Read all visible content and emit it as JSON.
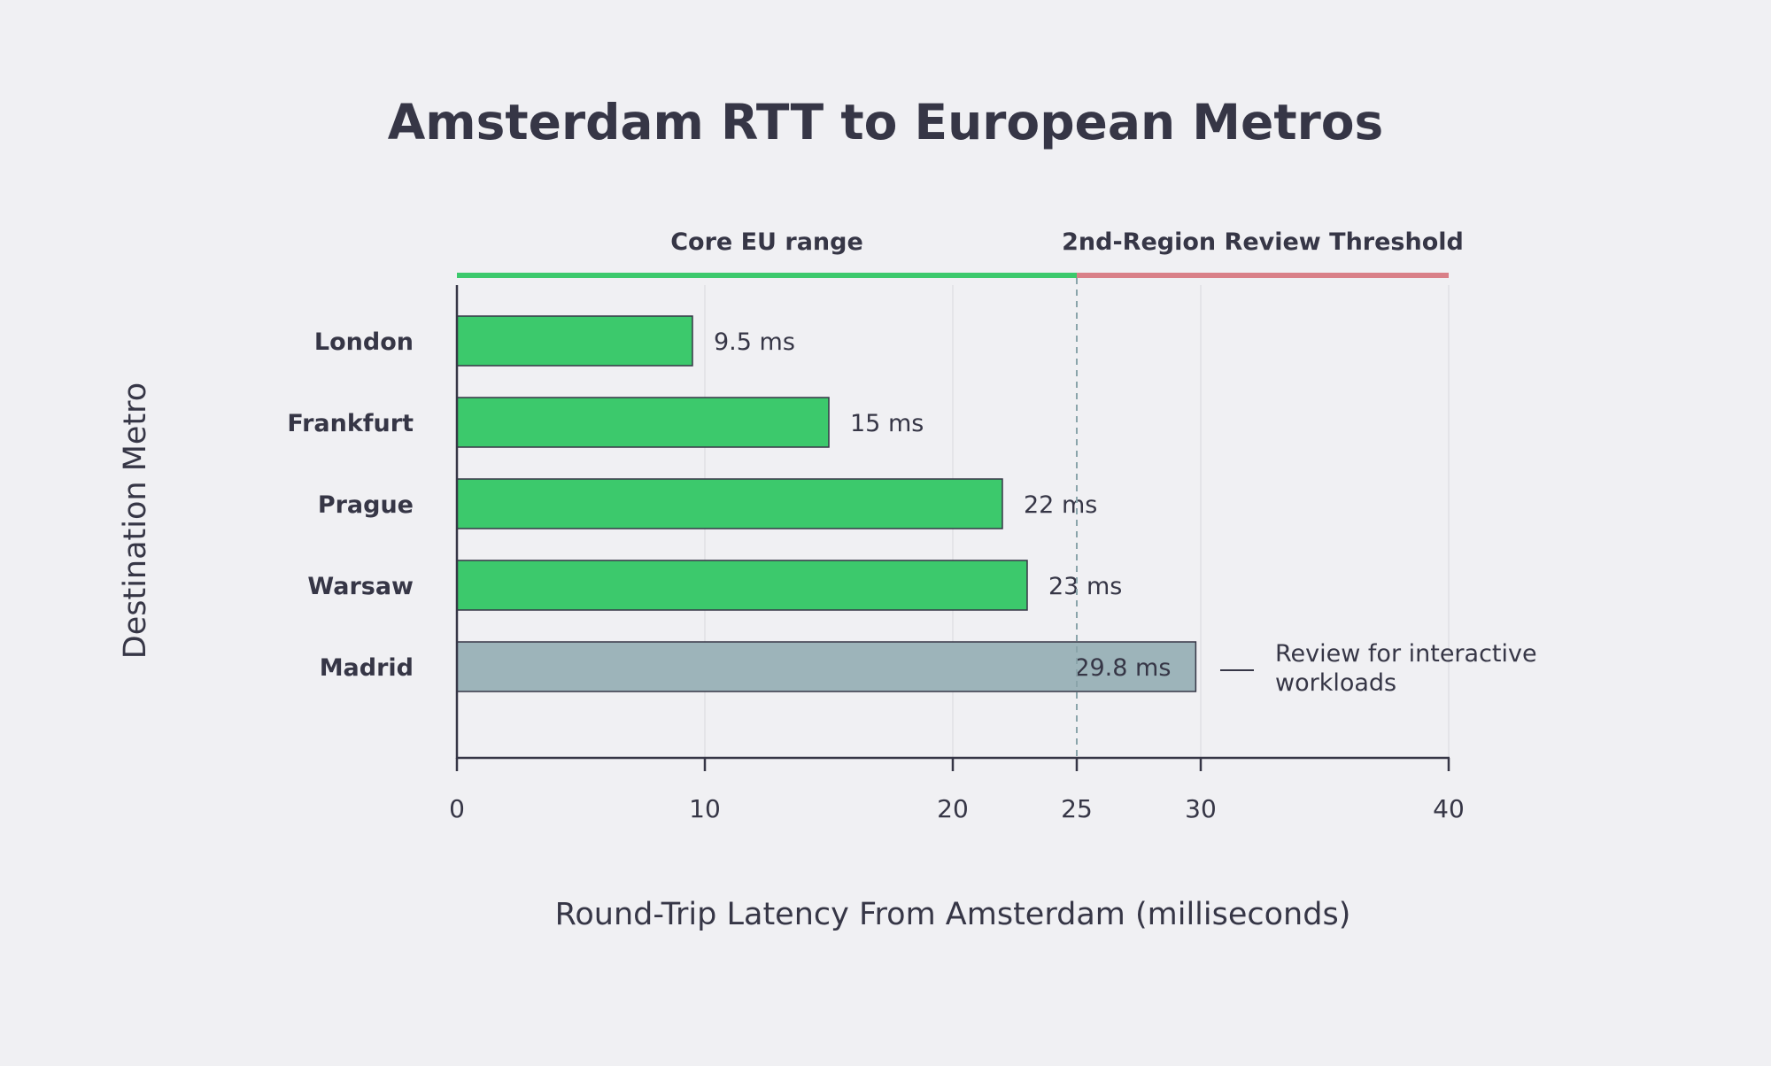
{
  "chart_data": {
    "type": "bar",
    "orientation": "horizontal",
    "title": "Amsterdam RTT to European Metros",
    "xlabel": "Round-Trip Latency From Amsterdam (milliseconds)",
    "ylabel": "Destination Metro",
    "categories": [
      "London",
      "Frankfurt",
      "Prague",
      "Warsaw",
      "Madrid"
    ],
    "values": [
      9.5,
      15,
      22,
      23,
      29.8
    ],
    "value_labels": [
      "9.5 ms",
      "15 ms",
      "22 ms",
      "23 ms",
      "29.8 ms"
    ],
    "bar_colors": [
      "#3cc96c",
      "#3cc96c",
      "#3cc96c",
      "#3cc96c",
      "#9db4ba"
    ],
    "xlim": [
      0,
      40
    ],
    "xticks": [
      0,
      10,
      20,
      25,
      30,
      40
    ],
    "grid": true,
    "threshold": {
      "value": 25,
      "style": "dashed",
      "color": "#8aa4aa"
    },
    "bands": [
      {
        "label": "Core EU range",
        "from": 0,
        "to": 25,
        "color": "#3cc96c"
      },
      {
        "label": "2nd-Region Review Threshold",
        "from": 25,
        "to": 40,
        "color": "#d98088"
      }
    ],
    "annotation": {
      "category": "Madrid",
      "lines": [
        "Review for interactive",
        "workloads"
      ]
    }
  },
  "colors": {
    "background": "#f0f0f3",
    "text": "#363646",
    "grid": "#dfdfe4",
    "axis": "#363646"
  }
}
